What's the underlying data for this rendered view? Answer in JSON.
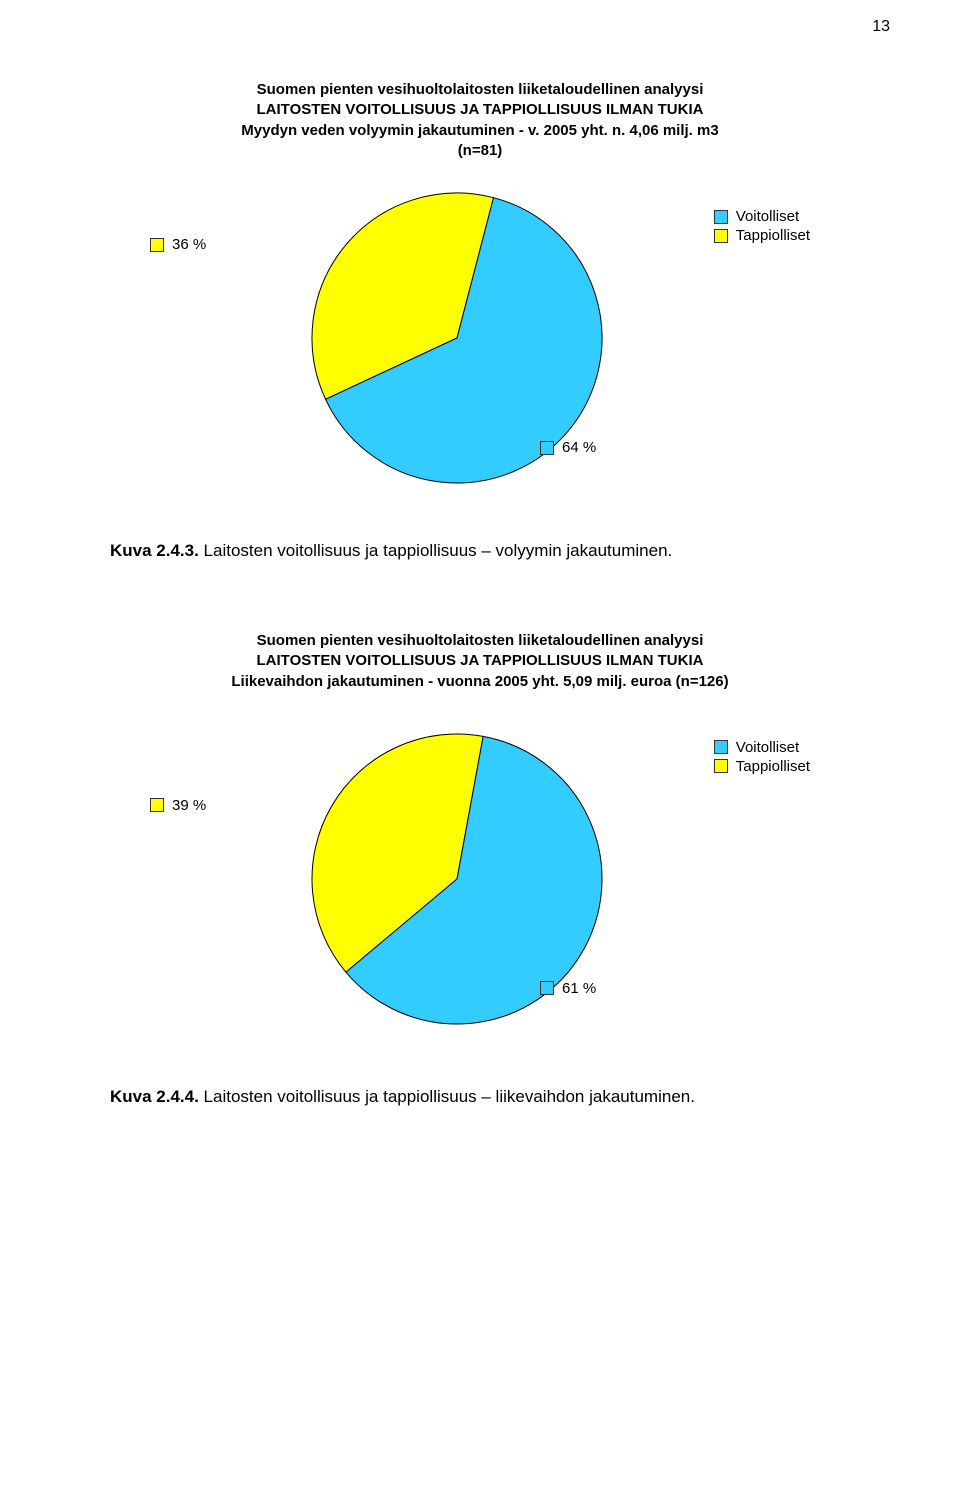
{
  "page_number": "13",
  "chart1": {
    "type": "pie",
    "title_lines": [
      "Suomen pienten vesihuoltolaitosten liiketaloudellinen analyysi",
      "LAITOSTEN VOITOLLISUUS JA TAPPIOLLISUUS ILMAN TUKIA",
      "Myydyn veden volyymin jakautuminen - v. 2005 yht. n. 4,06 milj. m3",
      "(n=81)"
    ],
    "slices": [
      {
        "label": "36 %",
        "value": 36,
        "color": "#ffff00"
      },
      {
        "label": "64 %",
        "value": 64,
        "color": "#33ccff"
      }
    ],
    "legend": [
      {
        "label": "Voitolliset",
        "color": "#33ccff"
      },
      {
        "label": "Tappiolliset",
        "color": "#ffff00"
      }
    ],
    "pie_radius": 145,
    "stroke_color": "#000000",
    "font_size": 15,
    "caption_prefix": "Kuva 2.4.3.",
    "caption_text": " Laitosten voitollisuus ja tappiollisuus – volyymin jakautuminen."
  },
  "chart2": {
    "type": "pie",
    "title_lines": [
      "Suomen pienten vesihuoltolaitosten liiketaloudellinen analyysi",
      "LAITOSTEN VOITOLLISUUS JA TAPPIOLLISUUS ILMAN TUKIA",
      "Liikevaihdon jakautuminen - vuonna 2005 yht. 5,09 milj. euroa (n=126)"
    ],
    "slices": [
      {
        "label": "39 %",
        "value": 39,
        "color": "#ffff00"
      },
      {
        "label": "61 %",
        "value": 61,
        "color": "#33ccff"
      }
    ],
    "legend": [
      {
        "label": "Voitolliset",
        "color": "#33ccff"
      },
      {
        "label": "Tappiolliset",
        "color": "#ffff00"
      }
    ],
    "pie_radius": 145,
    "stroke_color": "#000000",
    "font_size": 15,
    "caption_prefix": "Kuva 2.4.4.",
    "caption_text": " Laitosten voitollisuus ja tappiollisuus – liikevaihdon jakautuminen."
  }
}
